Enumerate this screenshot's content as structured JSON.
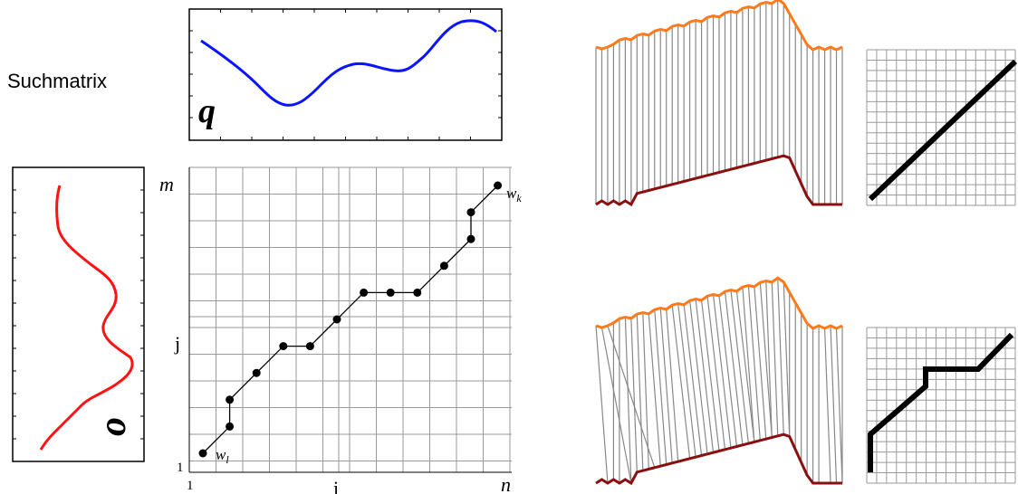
{
  "title": "Suchmatrix",
  "query": {
    "label": "q",
    "color": "#0a14ff"
  },
  "reference": {
    "label": "o",
    "color": "#ff1212"
  },
  "matrix": {
    "labels": {
      "m": "m",
      "n": "n",
      "i": "i",
      "j": "j",
      "one_x": "1",
      "one_y": "1",
      "w1": "w",
      "w1_sub": "l",
      "wk": "w",
      "wk_sub": "k"
    },
    "columns": 11,
    "rows": 11,
    "path": [
      [
        0,
        0
      ],
      [
        1,
        1
      ],
      [
        1,
        2
      ],
      [
        2,
        3
      ],
      [
        3,
        4
      ],
      [
        4,
        4
      ],
      [
        5,
        5
      ],
      [
        6,
        6
      ],
      [
        7,
        6
      ],
      [
        8,
        6
      ],
      [
        9,
        7
      ],
      [
        10,
        8
      ],
      [
        10,
        9
      ],
      [
        11,
        10
      ]
    ]
  },
  "colors": {
    "upper_curve": "#ff7a1a",
    "lower_curve": "#8b0f0f",
    "connector": "#888888",
    "path": "#000000"
  }
}
